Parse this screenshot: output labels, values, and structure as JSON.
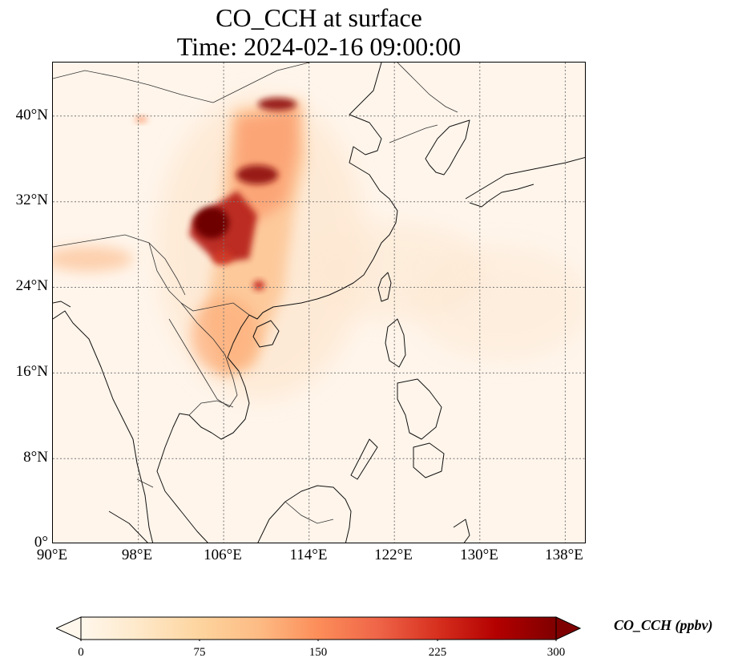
{
  "title": {
    "line1": "CO_CCH at surface",
    "line2": "Time: 2024-02-16 09:00:00"
  },
  "map": {
    "projection": "PlateCarree",
    "lon_range": [
      90,
      140
    ],
    "lat_range": [
      0,
      45
    ],
    "gridlines": "dotted",
    "coastlines": true,
    "country_borders": true,
    "lat_ticks": [
      "0°",
      "8°N",
      "16°N",
      "24°N",
      "32°N",
      "40°N"
    ],
    "lon_ticks": [
      "90°E",
      "98°E",
      "106°E",
      "114°E",
      "122°E",
      "130°E",
      "138°E"
    ]
  },
  "colorbar": {
    "label": "CO_CCH (ppbv)",
    "colormap": "OrRd",
    "min": 0,
    "max": 300,
    "extend": "both",
    "ticks": [
      "0",
      "75",
      "150",
      "225",
      "300"
    ],
    "colors": [
      "#fff7ec",
      "#fee8c8",
      "#fdd49e",
      "#fdbb84",
      "#fc8d59",
      "#ef6548",
      "#d7301f",
      "#b30000",
      "#7f0000"
    ]
  },
  "chart_data": {
    "type": "heatmap",
    "title": "CO_CCH at surface\nTime: 2024-02-16 09:00:00",
    "variable": "CO_CCH",
    "units": "ppbv",
    "xlabel": "",
    "ylabel": "",
    "xlim": [
      90,
      140
    ],
    "ylim": [
      0,
      45
    ],
    "clim": [
      0,
      300
    ],
    "features": [
      {
        "lon": 104.3,
        "lat": 30.0,
        "value": 300
      },
      {
        "lon": 105.5,
        "lat": 29.0,
        "value": 290
      },
      {
        "lon": 103.5,
        "lat": 30.5,
        "value": 280
      },
      {
        "lon": 106.0,
        "lat": 27.0,
        "value": 230
      },
      {
        "lon": 109.0,
        "lat": 35.0,
        "value": 260
      },
      {
        "lon": 111.5,
        "lat": 41.0,
        "value": 260
      },
      {
        "lon": 107.5,
        "lat": 37.0,
        "value": 170
      },
      {
        "lon": 106.5,
        "lat": 33.0,
        "value": 170
      },
      {
        "lon": 108.0,
        "lat": 31.0,
        "value": 150
      },
      {
        "lon": 109.5,
        "lat": 28.0,
        "value": 130
      },
      {
        "lon": 108.5,
        "lat": 24.5,
        "value": 200
      },
      {
        "lon": 105.0,
        "lat": 21.0,
        "value": 130
      },
      {
        "lon": 105.5,
        "lat": 18.5,
        "value": 110
      },
      {
        "lon": 96.5,
        "lat": 26.5,
        "value": 80
      },
      {
        "lon": 92.0,
        "lat": 27.0,
        "value": 50
      },
      {
        "lon": 97.5,
        "lat": 39.5,
        "value": 70
      }
    ]
  }
}
